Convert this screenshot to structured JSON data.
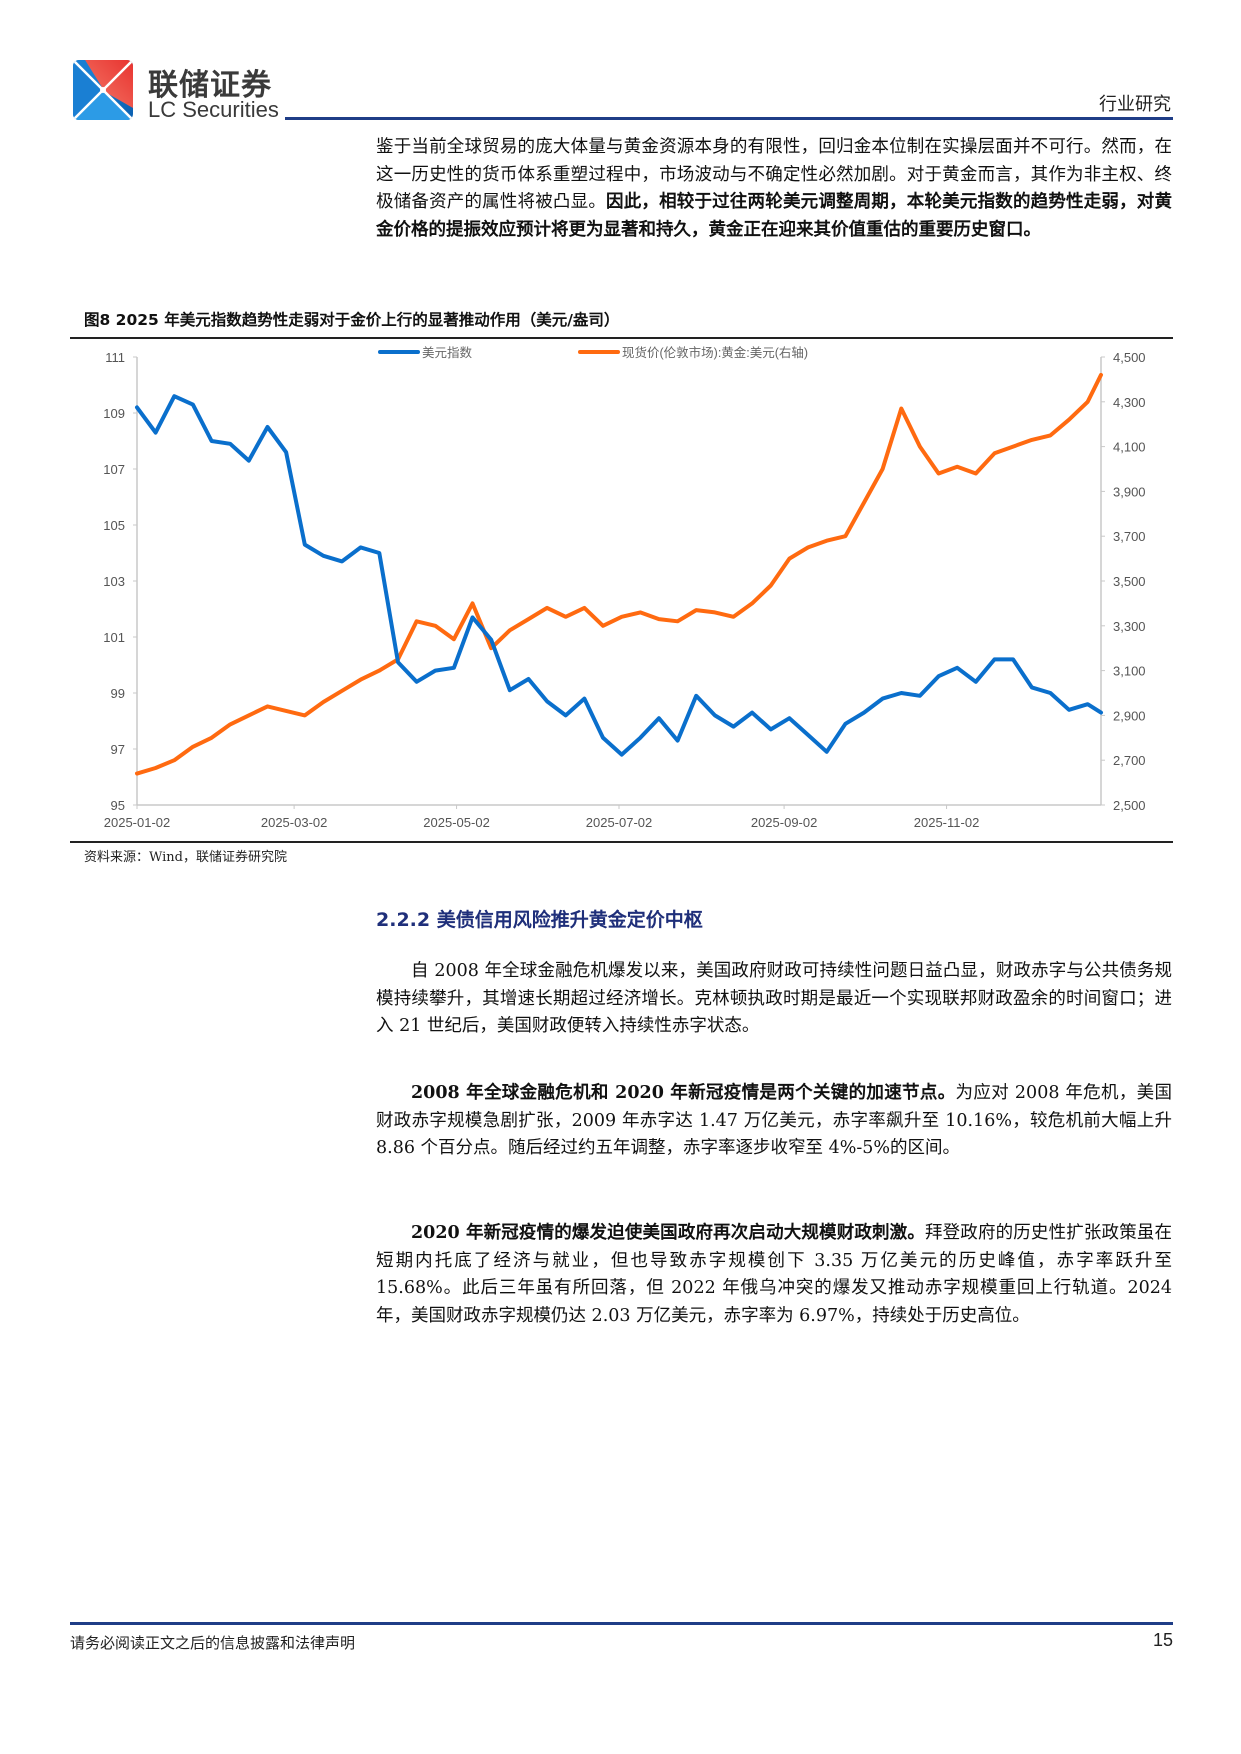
{
  "header": {
    "brand_cn": "联储证券",
    "brand_en": "LC Securities",
    "section_tag": "行业研究"
  },
  "intro_paragraph": {
    "normal": "鉴于当前全球贸易的庞大体量与黄金资源本身的有限性，回归金本位制在实操层面并不可行。然而，在这一历史性的货币体系重塑过程中，市场波动与不确定性必然加剧。对于黄金而言，其作为非主权、终极储备资产的属性将被凸显。",
    "bold": "因此，相较于过往两轮美元调整周期，本轮美元指数的趋势性走弱，对黄金价格的提振效应预计将更为显著和持久，黄金正在迎来其价值重估的重要历史窗口。"
  },
  "figure": {
    "title": "图8  2025 年美元指数趋势性走弱对于金价上行的显著推动作用（美元/盎司）",
    "source": "资料来源：Wind，联储证券研究院"
  },
  "chart_data": {
    "type": "line",
    "title": "2025 年美元指数趋势性走弱对于金价上行的显著推动作用（美元/盎司）",
    "xlabel": "",
    "ylabel": "",
    "y2label": "",
    "legend_position": "top",
    "grid": false,
    "x_tick_labels": [
      "2025-01-02",
      "2025-03-02",
      "2025-05-02",
      "2025-07-02",
      "2025-09-02",
      "2025-11-02"
    ],
    "y_left_ticks": [
      95,
      97,
      99,
      101,
      103,
      105,
      107,
      109,
      111
    ],
    "y_right_ticks": [
      "2,500",
      "2,700",
      "2,900",
      "3,100",
      "3,300",
      "3,500",
      "3,700",
      "3,900",
      "4,100",
      "4,300",
      "4,500"
    ],
    "ylim": [
      95,
      111
    ],
    "y2lim": [
      2500,
      4500
    ],
    "x": [
      "2025-01-02",
      "2025-01-09",
      "2025-01-16",
      "2025-01-23",
      "2025-01-30",
      "2025-02-06",
      "2025-02-13",
      "2025-02-20",
      "2025-02-27",
      "2025-03-06",
      "2025-03-13",
      "2025-03-20",
      "2025-03-27",
      "2025-04-03",
      "2025-04-10",
      "2025-04-17",
      "2025-04-24",
      "2025-05-01",
      "2025-05-08",
      "2025-05-15",
      "2025-05-22",
      "2025-05-29",
      "2025-06-05",
      "2025-06-12",
      "2025-06-19",
      "2025-06-26",
      "2025-07-03",
      "2025-07-10",
      "2025-07-17",
      "2025-07-24",
      "2025-07-31",
      "2025-08-07",
      "2025-08-14",
      "2025-08-21",
      "2025-08-28",
      "2025-09-04",
      "2025-09-11",
      "2025-09-18",
      "2025-09-25",
      "2025-10-02",
      "2025-10-09",
      "2025-10-16",
      "2025-10-23",
      "2025-10-30",
      "2025-11-06",
      "2025-11-13",
      "2025-11-20",
      "2025-11-27",
      "2025-12-04",
      "2025-12-11",
      "2025-12-18",
      "2025-12-25",
      "2025-12-30"
    ],
    "series": [
      {
        "name": "美元指数",
        "axis": "left",
        "color": "#0a6fcc",
        "values": [
          109.2,
          108.3,
          109.6,
          109.3,
          108.0,
          107.9,
          107.3,
          108.5,
          107.6,
          104.3,
          103.9,
          103.7,
          104.2,
          104.0,
          100.1,
          99.4,
          99.8,
          99.9,
          101.7,
          100.9,
          99.1,
          99.5,
          98.7,
          98.2,
          98.8,
          97.4,
          96.8,
          97.4,
          98.1,
          97.3,
          98.9,
          98.2,
          97.8,
          98.3,
          97.7,
          98.1,
          97.5,
          96.9,
          97.9,
          98.3,
          98.8,
          99.0,
          98.9,
          99.6,
          99.9,
          99.4,
          100.2,
          100.2,
          99.2,
          99.0,
          98.4,
          98.6,
          98.3
        ]
      },
      {
        "name": "现货价(伦敦市场):黄金:美元(右轴)",
        "axis": "right",
        "color": "#ff6a10",
        "values": [
          2640,
          2665,
          2700,
          2760,
          2800,
          2860,
          2900,
          2940,
          2920,
          2900,
          2960,
          3010,
          3060,
          3100,
          3150,
          3320,
          3300,
          3240,
          3400,
          3200,
          3280,
          3330,
          3380,
          3340,
          3380,
          3300,
          3340,
          3360,
          3330,
          3320,
          3370,
          3360,
          3340,
          3400,
          3480,
          3600,
          3650,
          3680,
          3700,
          3850,
          4000,
          4270,
          4100,
          3980,
          4010,
          3980,
          4070,
          4100,
          4130,
          4150,
          4220,
          4300,
          4420
        ]
      }
    ]
  },
  "section": {
    "heading": "2.2.2 美债信用风险推升黄金定价中枢",
    "paragraphs": [
      {
        "bold": "",
        "normal": "自 2008 年全球金融危机爆发以来，美国政府财政可持续性问题日益凸显，财政赤字与公共债务规模持续攀升，其增速长期超过经济增长。克林顿执政时期是最近一个实现联邦财政盈余的时间窗口；进入 21 世纪后，美国财政便转入持续性赤字状态。"
      },
      {
        "bold": "2008 年全球金融危机和 2020 年新冠疫情是两个关键的加速节点。",
        "normal": "为应对 2008 年危机，美国财政赤字规模急剧扩张，2009 年赤字达 1.47 万亿美元，赤字率飙升至 10.16%，较危机前大幅上升 8.86 个百分点。随后经过约五年调整，赤字率逐步收窄至 4%-5%的区间。"
      },
      {
        "bold": "2020 年新冠疫情的爆发迫使美国政府再次启动大规模财政刺激。",
        "normal": "拜登政府的历史性扩张政策虽在短期内托底了经济与就业，但也导致赤字规模创下 3.35 万亿美元的历史峰值，赤字率跃升至 15.68%。此后三年虽有所回落，但 2022 年俄乌冲突的爆发又推动赤字规模重回上行轨道。2024 年，美国财政赤字规模仍达 2.03 万亿美元，赤字率为 6.97%，持续处于历史高位。"
      }
    ]
  },
  "footer": {
    "disclaimer": "请务必阅读正文之后的信息披露和法律声明",
    "page_number": "15"
  },
  "colors": {
    "brand_blue": "#1f3d87",
    "usd_line": "#0a6fcc",
    "gold_line": "#ff6a10",
    "section_heading": "#1f2f7a"
  }
}
